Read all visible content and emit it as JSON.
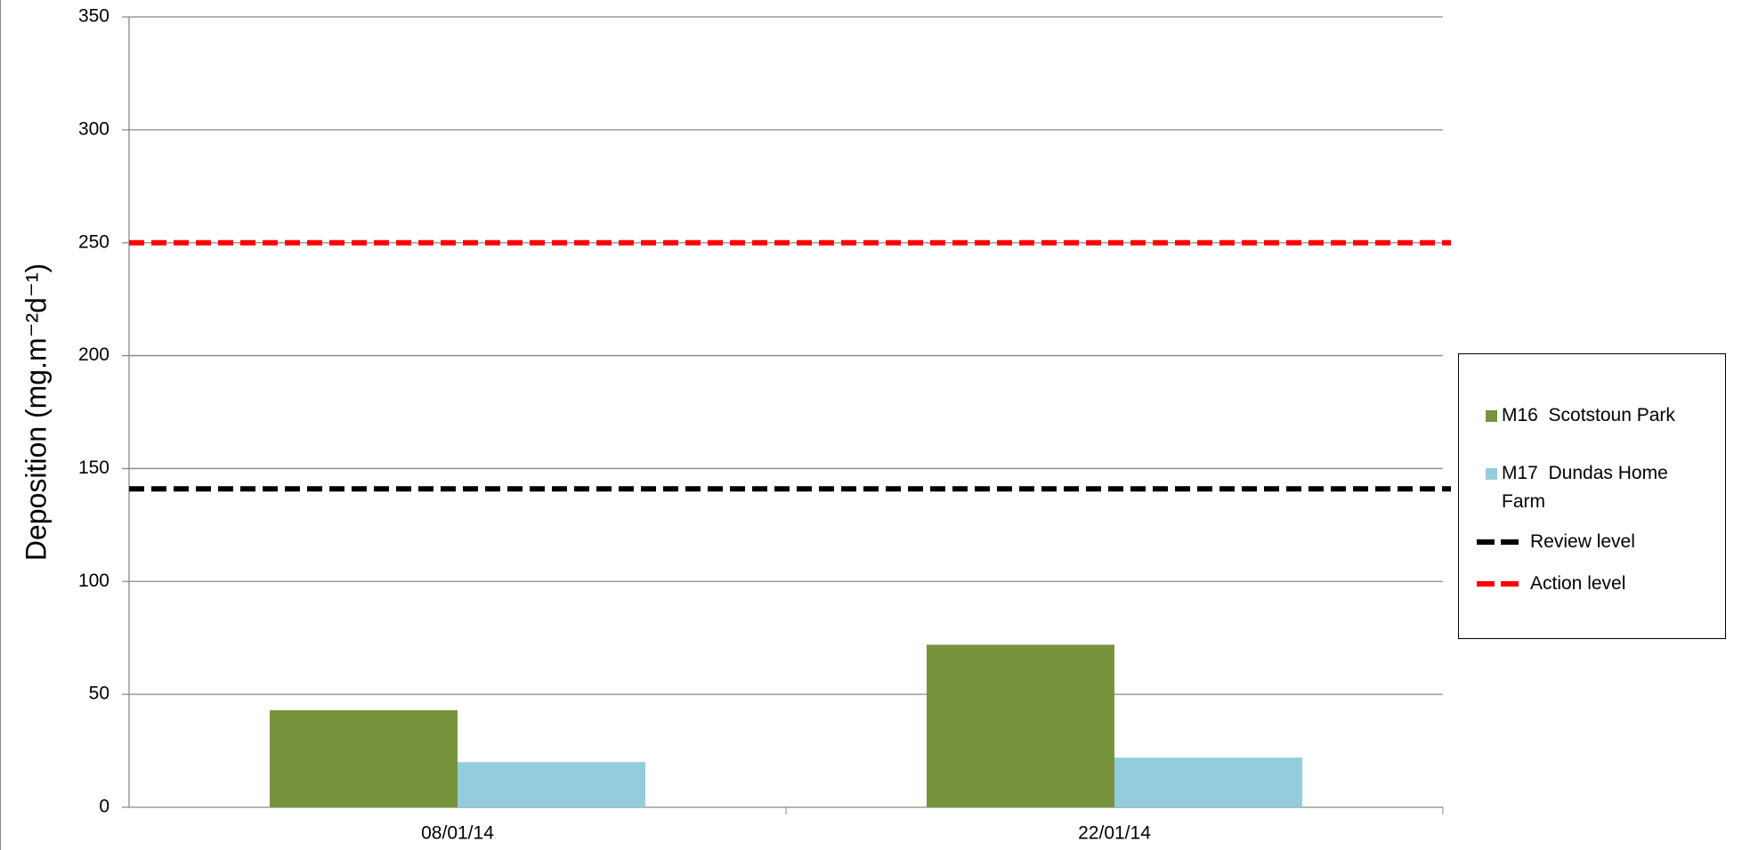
{
  "chart_data": {
    "type": "bar",
    "y_label": "Deposition (mg.m⁻²d⁻¹)",
    "categories": [
      "08/01/14",
      "22/01/14"
    ],
    "series": [
      {
        "name": "M16  Scotstoun Park",
        "color": "#77933c",
        "values": [
          43,
          72
        ]
      },
      {
        "name": "M17  Dundas Home Farm",
        "color": "#93cddd",
        "values": [
          20,
          22
        ]
      },
      {
        "name": "Review level",
        "color": "#000000",
        "kind": "dashed-line",
        "values": [
          141,
          141
        ]
      },
      {
        "name": "Action level",
        "color": "#ff0000",
        "kind": "dashed-line",
        "values": [
          250,
          250
        ]
      }
    ],
    "ylim": [
      0,
      350
    ],
    "yticks": [
      0,
      50,
      100,
      150,
      200,
      250,
      300,
      350
    ],
    "grid": true,
    "legend": "right"
  }
}
